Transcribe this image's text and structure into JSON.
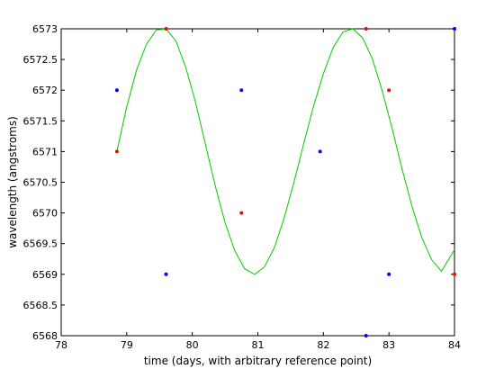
{
  "chart_data": {
    "type": "scatter",
    "title": "",
    "xlabel": "time (days, with arbitrary reference point)",
    "ylabel": "wavelength (angstroms)",
    "xlim": [
      78,
      84
    ],
    "ylim": [
      6568,
      6573
    ],
    "x_ticks": [
      78,
      79,
      80,
      81,
      82,
      83,
      84
    ],
    "y_ticks": [
      6568,
      6568.5,
      6569,
      6569.5,
      6570,
      6570.5,
      6571,
      6571.5,
      6572,
      6572.5,
      6573
    ],
    "grid": false,
    "legend": "none",
    "series": [
      {
        "color": "#ff0000",
        "marker": "point",
        "x": [
          78.85,
          79.6,
          80.75,
          82.65,
          83.0,
          84.0
        ],
        "y": [
          6571,
          6573,
          6570,
          6573,
          6572,
          6569
        ]
      },
      {
        "color": "#0000ff",
        "marker": "point",
        "x": [
          78.85,
          79.6,
          80.75,
          81.95,
          82.65,
          83.0,
          84.0
        ],
        "y": [
          6572,
          6569,
          6572,
          6571,
          6568,
          6569,
          6573
        ]
      },
      {
        "color": "#00cc00",
        "marker": "line",
        "x": [
          78.85,
          79.0,
          79.15,
          79.3,
          79.45,
          79.6,
          79.75,
          79.9,
          80.05,
          80.2,
          80.35,
          80.5,
          80.65,
          80.8,
          80.95,
          81.1,
          81.25,
          81.4,
          81.55,
          81.7,
          81.85,
          82.0,
          82.15,
          82.3,
          82.45,
          82.6,
          82.75,
          82.9,
          83.05,
          83.2,
          83.35,
          83.5,
          83.65,
          83.8,
          84.0
        ],
        "y": [
          6571.0,
          6571.73,
          6572.33,
          6572.75,
          6572.98,
          6573.0,
          6572.8,
          6572.37,
          6571.8,
          6571.12,
          6570.44,
          6569.84,
          6569.38,
          6569.09,
          6569.0,
          6569.12,
          6569.43,
          6569.91,
          6570.5,
          6571.13,
          6571.74,
          6572.27,
          6572.7,
          6572.95,
          6573.0,
          6572.85,
          6572.5,
          6571.98,
          6571.37,
          6570.72,
          6570.11,
          6569.6,
          6569.24,
          6569.05,
          6569.4
        ]
      }
    ]
  }
}
